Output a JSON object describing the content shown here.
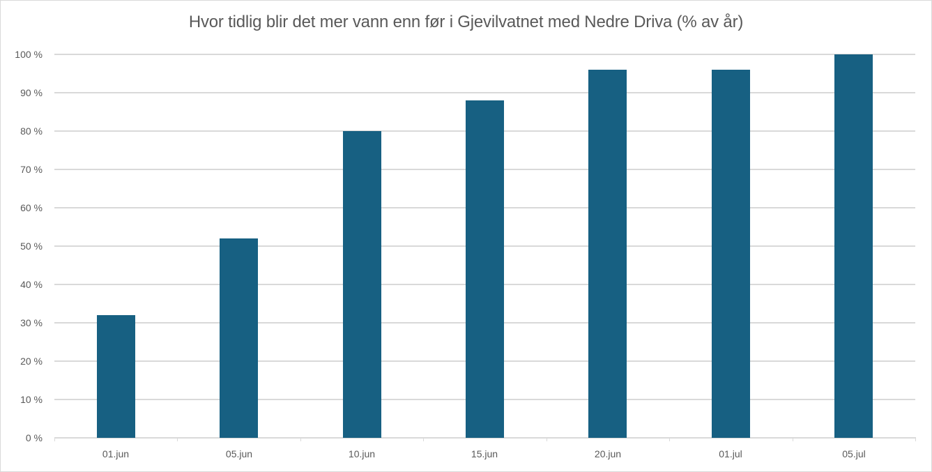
{
  "chart": {
    "title": "Hvor tidlig blir det mer vann enn før i Gjevilvatnet med Nedre Driva (% av år)",
    "bar_color": "#176082",
    "grid_color": "#d9d9d9",
    "text_color": "#595959",
    "y_ticks": [
      "0 %",
      "10 %",
      "20 %",
      "30 %",
      "40 %",
      "50 %",
      "60 %",
      "70 %",
      "80 %",
      "90 %",
      "100 %"
    ],
    "x_labels": [
      "01.jun",
      "05.jun",
      "10.jun",
      "15.jun",
      "20.jun",
      "01.jul",
      "05.jul"
    ]
  },
  "chart_data": {
    "type": "bar",
    "title": "Hvor tidlig blir det mer vann enn før i Gjevilvatnet med Nedre Driva (% av år)",
    "categories": [
      "01.jun",
      "05.jun",
      "10.jun",
      "15.jun",
      "20.jun",
      "01.jul",
      "05.jul"
    ],
    "values": [
      32,
      52,
      80,
      88,
      96,
      96,
      100
    ],
    "xlabel": "",
    "ylabel": "",
    "ylim": [
      0,
      100
    ],
    "y_format": "percent",
    "y_tick_step": 10,
    "grid": true,
    "legend": "none"
  }
}
